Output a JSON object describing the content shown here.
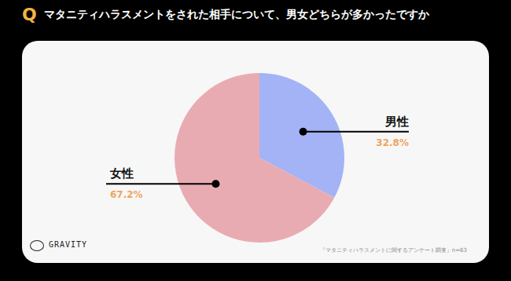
{
  "chart_data": {
    "type": "pie",
    "title": "マタニティハラスメントをされた相手について、男女どちらが多かったですか",
    "categories": [
      "男性",
      "女性"
    ],
    "values": [
      32.8,
      67.2
    ],
    "value_labels": [
      "32.8%",
      "67.2%"
    ],
    "colors": [
      "#a3b3f5",
      "#e9abb2"
    ],
    "data_labels": true
  },
  "header": {
    "badge": "Q"
  },
  "footer": {
    "brand": "GRAVITY",
    "source": "『マタニティハラスメントに関するアンケート調査』n=63"
  }
}
